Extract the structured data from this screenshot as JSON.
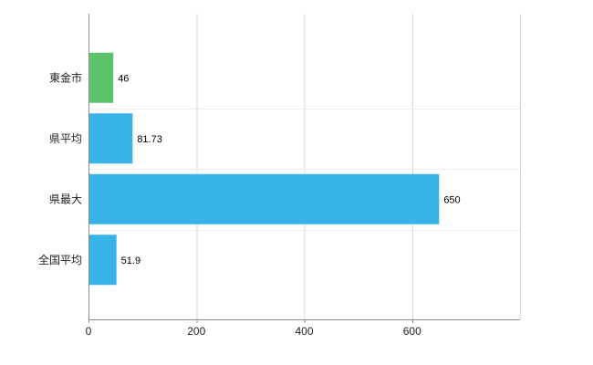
{
  "chart_data": {
    "type": "bar",
    "orientation": "horizontal",
    "title": "",
    "xlabel": "",
    "ylabel": "",
    "categories": [
      "東金市",
      "県平均",
      "県最大",
      "全国平均"
    ],
    "values": [
      46,
      81.73,
      650,
      51.9
    ],
    "value_labels": [
      "46",
      "81.73",
      "650",
      "51.9"
    ],
    "bar_colors": [
      "#5cc368",
      "#38b3e8",
      "#38b3e8",
      "#38b3e8"
    ],
    "x_ticks": [
      0,
      200,
      400,
      600
    ],
    "x_tick_labels": [
      "0",
      "200",
      "400",
      "600"
    ],
    "xlim": [
      0,
      800
    ],
    "grid": true,
    "legend": "none",
    "colors": {
      "axis": "#8c8c8c",
      "gridline": "#d9d9d9",
      "row_gridline": "#ececec",
      "tick_text": "#222222",
      "category_text": "#222222",
      "value_text": "#000000",
      "background": "#ffffff"
    }
  }
}
